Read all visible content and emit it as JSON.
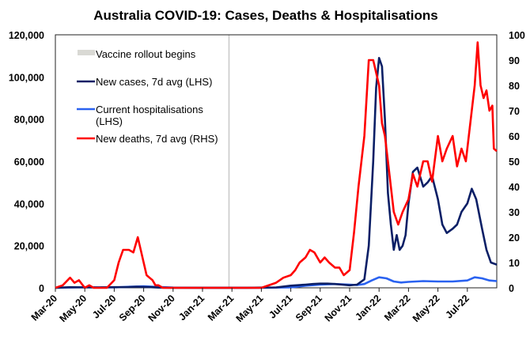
{
  "chart_data": {
    "type": "line",
    "title": "Australia COVID-19: Cases, Deaths & Hospitalisations",
    "xlabel": "",
    "ylabel_left": "",
    "ylabel_right": "",
    "x_unit": "months since Mar-20",
    "xlim": [
      0,
      30
    ],
    "ylim_left": [
      0,
      120000
    ],
    "ylim_right": [
      0,
      100
    ],
    "grid": false,
    "x_tick_labels": [
      "Mar-20",
      "May-20",
      "Jul-20",
      "Sep-20",
      "Nov-20",
      "Jan-21",
      "Mar-21",
      "May-21",
      "Jul-21",
      "Sep-21",
      "Nov-21",
      "Jan-22",
      "Mar-22",
      "May-22",
      "Jul-22"
    ],
    "y_left_tick_labels": [
      "0",
      "20,000",
      "40,000",
      "60,000",
      "80,000",
      "100,000",
      "120,000"
    ],
    "y_right_tick_labels": [
      "0",
      "10",
      "20",
      "30",
      "40",
      "50",
      "60",
      "70",
      "80",
      "90",
      "100"
    ],
    "colors": {
      "vaccine": "#d9d9d4",
      "cases": "#0b1f66",
      "hospitalisations": "#2a62f0",
      "deaths": "#ff0000",
      "axis": "#000000"
    },
    "annotations": [
      {
        "label": "Vaccine rollout begins",
        "x": 11.8
      }
    ],
    "legend": {
      "position": "top-left",
      "entries": [
        {
          "label": "Vaccine rollout begins",
          "key": "vaccine"
        },
        {
          "label": "New cases, 7d avg (LHS)",
          "key": "cases"
        },
        {
          "label": "Current hospitalisations",
          "label2": "(LHS)",
          "key": "hospitalisations"
        },
        {
          "label": "New deaths, 7d avg (RHS)",
          "key": "deaths"
        }
      ]
    },
    "series": [
      {
        "name": "New cases, 7d avg (LHS)",
        "axis": "left",
        "key": "cases",
        "x": [
          0,
          1,
          2,
          3,
          4,
          5,
          5.5,
          6,
          6.5,
          7,
          8,
          9,
          10,
          11,
          12,
          13,
          14,
          15,
          16,
          17,
          17.5,
          18,
          18.5,
          19,
          19.5,
          20,
          20.5,
          21,
          21.3,
          21.6,
          21.8,
          22,
          22.2,
          22.4,
          22.6,
          22.8,
          23,
          23.2,
          23.4,
          23.6,
          23.8,
          24,
          24.3,
          24.6,
          25,
          25.3,
          25.6,
          26,
          26.3,
          26.6,
          27,
          27.3,
          27.6,
          28,
          28.3,
          28.6,
          29,
          29.3,
          29.6,
          30
        ],
        "values": [
          0,
          300,
          200,
          200,
          300,
          350,
          500,
          400,
          300,
          100,
          50,
          50,
          30,
          30,
          30,
          50,
          100,
          200,
          1000,
          1500,
          1800,
          2000,
          2000,
          1800,
          1500,
          1200,
          1500,
          4000,
          20000,
          60000,
          95000,
          109000,
          105000,
          80000,
          45000,
          30000,
          18000,
          25000,
          18000,
          20000,
          25000,
          40000,
          55000,
          57000,
          48000,
          50000,
          53000,
          42000,
          30000,
          26000,
          28000,
          30000,
          36000,
          40000,
          47000,
          42000,
          28000,
          18000,
          12000,
          11000
        ]
      },
      {
        "name": "Current hospitalisations (LHS)",
        "axis": "left",
        "key": "hospitalisations",
        "x": [
          0,
          2,
          4,
          5,
          6,
          7,
          8,
          10,
          12,
          14,
          16,
          17,
          18,
          19,
          20,
          20.5,
          21,
          21.5,
          22,
          22.5,
          23,
          23.5,
          24,
          25,
          26,
          27,
          28,
          28.5,
          29,
          29.5,
          30
        ],
        "values": [
          0,
          300,
          200,
          500,
          700,
          400,
          100,
          50,
          20,
          50,
          200,
          1000,
          1500,
          1800,
          1500,
          1300,
          1800,
          3500,
          5000,
          4500,
          3000,
          2500,
          2800,
          3200,
          3000,
          3000,
          3500,
          5000,
          4500,
          3500,
          3200
        ]
      },
      {
        "name": "New deaths, 7d avg (RHS)",
        "axis": "right",
        "key": "deaths",
        "x": [
          0,
          0.5,
          1,
          1.3,
          1.6,
          2,
          2.3,
          2.6,
          3,
          3.5,
          4,
          4.3,
          4.6,
          5,
          5.3,
          5.6,
          5.8,
          6,
          6.2,
          6.4,
          6.6,
          6.8,
          7,
          7.3,
          7.6,
          8,
          8.5,
          9,
          10,
          11,
          12,
          13,
          14,
          15,
          15.5,
          16,
          16.3,
          16.6,
          17,
          17.3,
          17.6,
          18,
          18.3,
          18.6,
          19,
          19.3,
          19.6,
          20,
          20.3,
          20.6,
          21,
          21.3,
          21.6,
          22,
          22.2,
          22.4,
          22.6,
          22.8,
          23,
          23.3,
          23.6,
          24,
          24.3,
          24.6,
          25,
          25.3,
          25.6,
          26,
          26.3,
          26.6,
          27,
          27.3,
          27.6,
          27.9,
          28.2,
          28.5,
          28.7,
          28.9,
          29.1,
          29.3,
          29.5,
          29.7,
          29.8,
          30
        ],
        "values": [
          0,
          1,
          4,
          2,
          3,
          0,
          1,
          0,
          0,
          0,
          3,
          10,
          15,
          15,
          14,
          20,
          15,
          10,
          5,
          4,
          3,
          1,
          1,
          0,
          0,
          0,
          0,
          0,
          0,
          0,
          0,
          0,
          0,
          2,
          4,
          5,
          7,
          10,
          12,
          15,
          14,
          10,
          12,
          10,
          8,
          8,
          5,
          7,
          22,
          40,
          60,
          90,
          90,
          80,
          65,
          60,
          50,
          40,
          30,
          25,
          30,
          35,
          45,
          40,
          50,
          50,
          42,
          60,
          50,
          55,
          60,
          48,
          55,
          50,
          65,
          80,
          97,
          80,
          75,
          78,
          70,
          72,
          55,
          54
        ]
      }
    ]
  }
}
